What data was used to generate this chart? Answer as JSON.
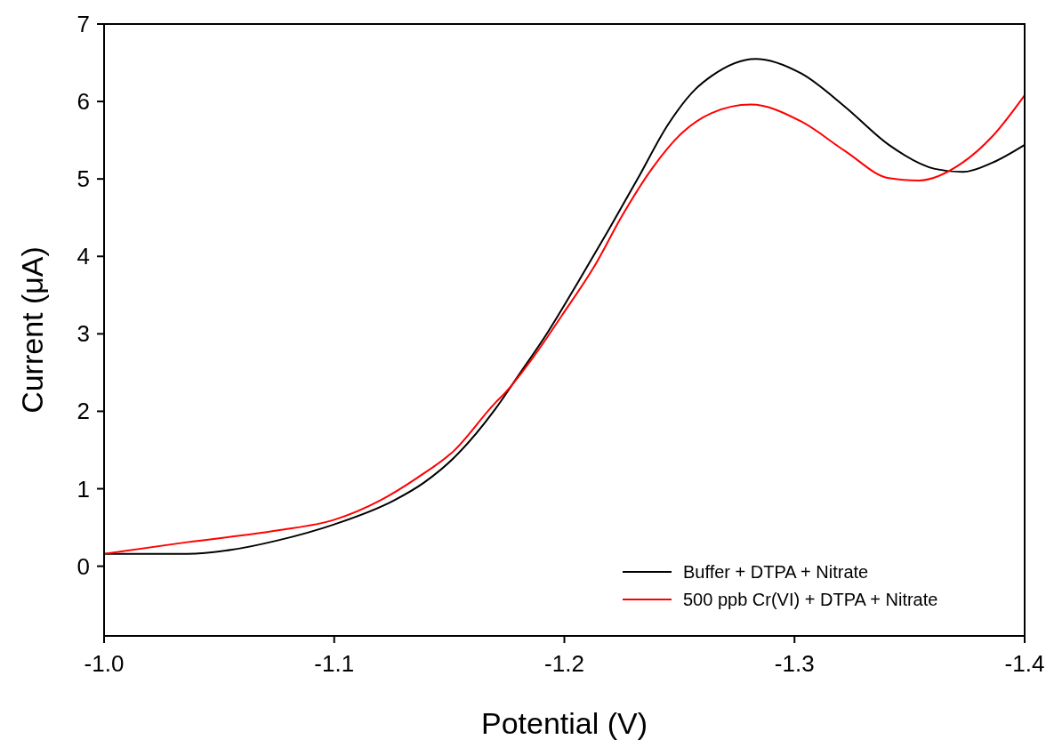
{
  "chart_data": {
    "type": "line",
    "xlabel": "Potential (V)",
    "ylabel": "Current (μA)",
    "xlim": [
      -1.0,
      -1.4
    ],
    "xticks": [
      {
        "value": -1.0,
        "label": "-1.0"
      },
      -1.1,
      -1.2,
      -1.3,
      {
        "value": -1.4,
        "label": "-1.4"
      }
    ],
    "ylim": [
      -0.9,
      7
    ],
    "yticks": [
      0,
      1,
      2,
      3,
      4,
      5,
      6,
      7
    ],
    "grid": false,
    "legend": "bottom right",
    "marker": "none",
    "line_style": "solid",
    "series": [
      {
        "name": "Buffer + DTPA + Nitrate",
        "color": "#000000",
        "x": [
          -1.0,
          -1.036,
          -1.055,
          -1.075,
          -1.1,
          -1.126,
          -1.139,
          -1.152,
          -1.17,
          -1.18,
          -1.193,
          -1.206,
          -1.219,
          -1.232,
          -1.245,
          -1.257,
          -1.264,
          -1.283,
          -1.303,
          -1.322,
          -1.341,
          -1.361,
          -1.373,
          -1.386,
          -1.4
        ],
        "values": [
          0.16,
          0.16,
          0.21,
          0.33,
          0.54,
          0.85,
          1.08,
          1.4,
          2.03,
          2.46,
          3.03,
          3.67,
          4.33,
          5.01,
          5.7,
          6.16,
          6.33,
          6.55,
          6.36,
          5.93,
          5.44,
          5.13,
          5.09,
          5.21,
          5.44
        ]
      },
      {
        "name": "500 ppb Cr(VI) + DTPA + Nitrate",
        "color": "#ff0000",
        "x": [
          -1.0,
          -1.036,
          -1.075,
          -1.1,
          -1.12,
          -1.136,
          -1.152,
          -1.17,
          -1.174,
          -1.187,
          -1.199,
          -1.213,
          -1.225,
          -1.238,
          -1.251,
          -1.264,
          -1.281,
          -1.303,
          -1.322,
          -1.341,
          -1.354,
          -1.373,
          -1.386,
          -1.4
        ],
        "values": [
          0.16,
          0.31,
          0.46,
          0.6,
          0.85,
          1.14,
          1.49,
          2.11,
          2.23,
          2.72,
          3.24,
          3.87,
          4.52,
          5.13,
          5.59,
          5.85,
          5.96,
          5.74,
          5.36,
          5.01,
          4.98,
          5.21,
          5.55,
          6.08
        ]
      }
    ]
  }
}
